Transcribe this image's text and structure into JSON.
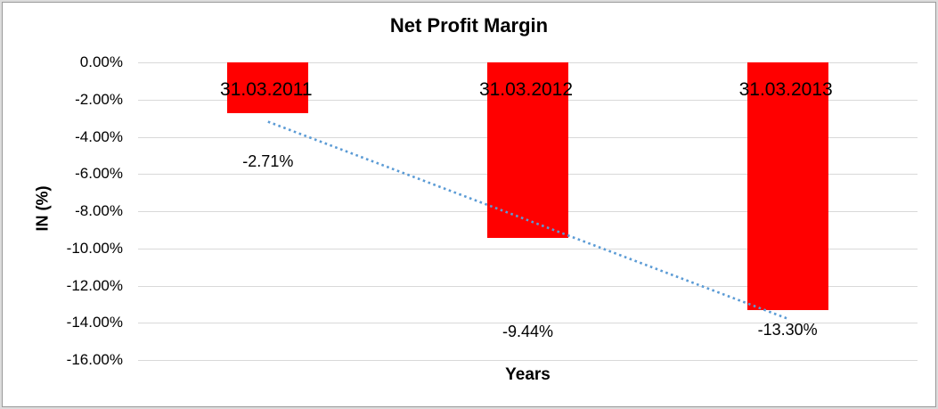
{
  "frame": {
    "outer_border_color": "#dcdcdc",
    "inner_border_color": "#9a9a9a",
    "background": "#ffffff"
  },
  "chart_data": {
    "type": "bar",
    "title": "Net Profit Margin",
    "xlabel": "Years",
    "ylabel": "IN (%)",
    "categories": [
      "31.03.2011",
      "31.03.2012",
      "31.03.2013"
    ],
    "values": [
      -2.71,
      -9.44,
      -13.3
    ],
    "data_labels": [
      "-2.71%",
      "-9.44%",
      "-13.30%"
    ],
    "ytick_labels": [
      "0.00%",
      "-2.00%",
      "-4.00%",
      "-6.00%",
      "-8.00%",
      "-10.00%",
      "-12.00%",
      "-14.00%",
      "-16.00%"
    ],
    "ylim": [
      -16,
      0
    ],
    "grid": "horizontal",
    "legend": "none",
    "bar_color": "#ff0000",
    "gridline_color": "#d9d9d9",
    "text_color": "#000000",
    "trendline": {
      "type": "linear",
      "style": "dotted",
      "color": "#5b9bd5"
    }
  }
}
